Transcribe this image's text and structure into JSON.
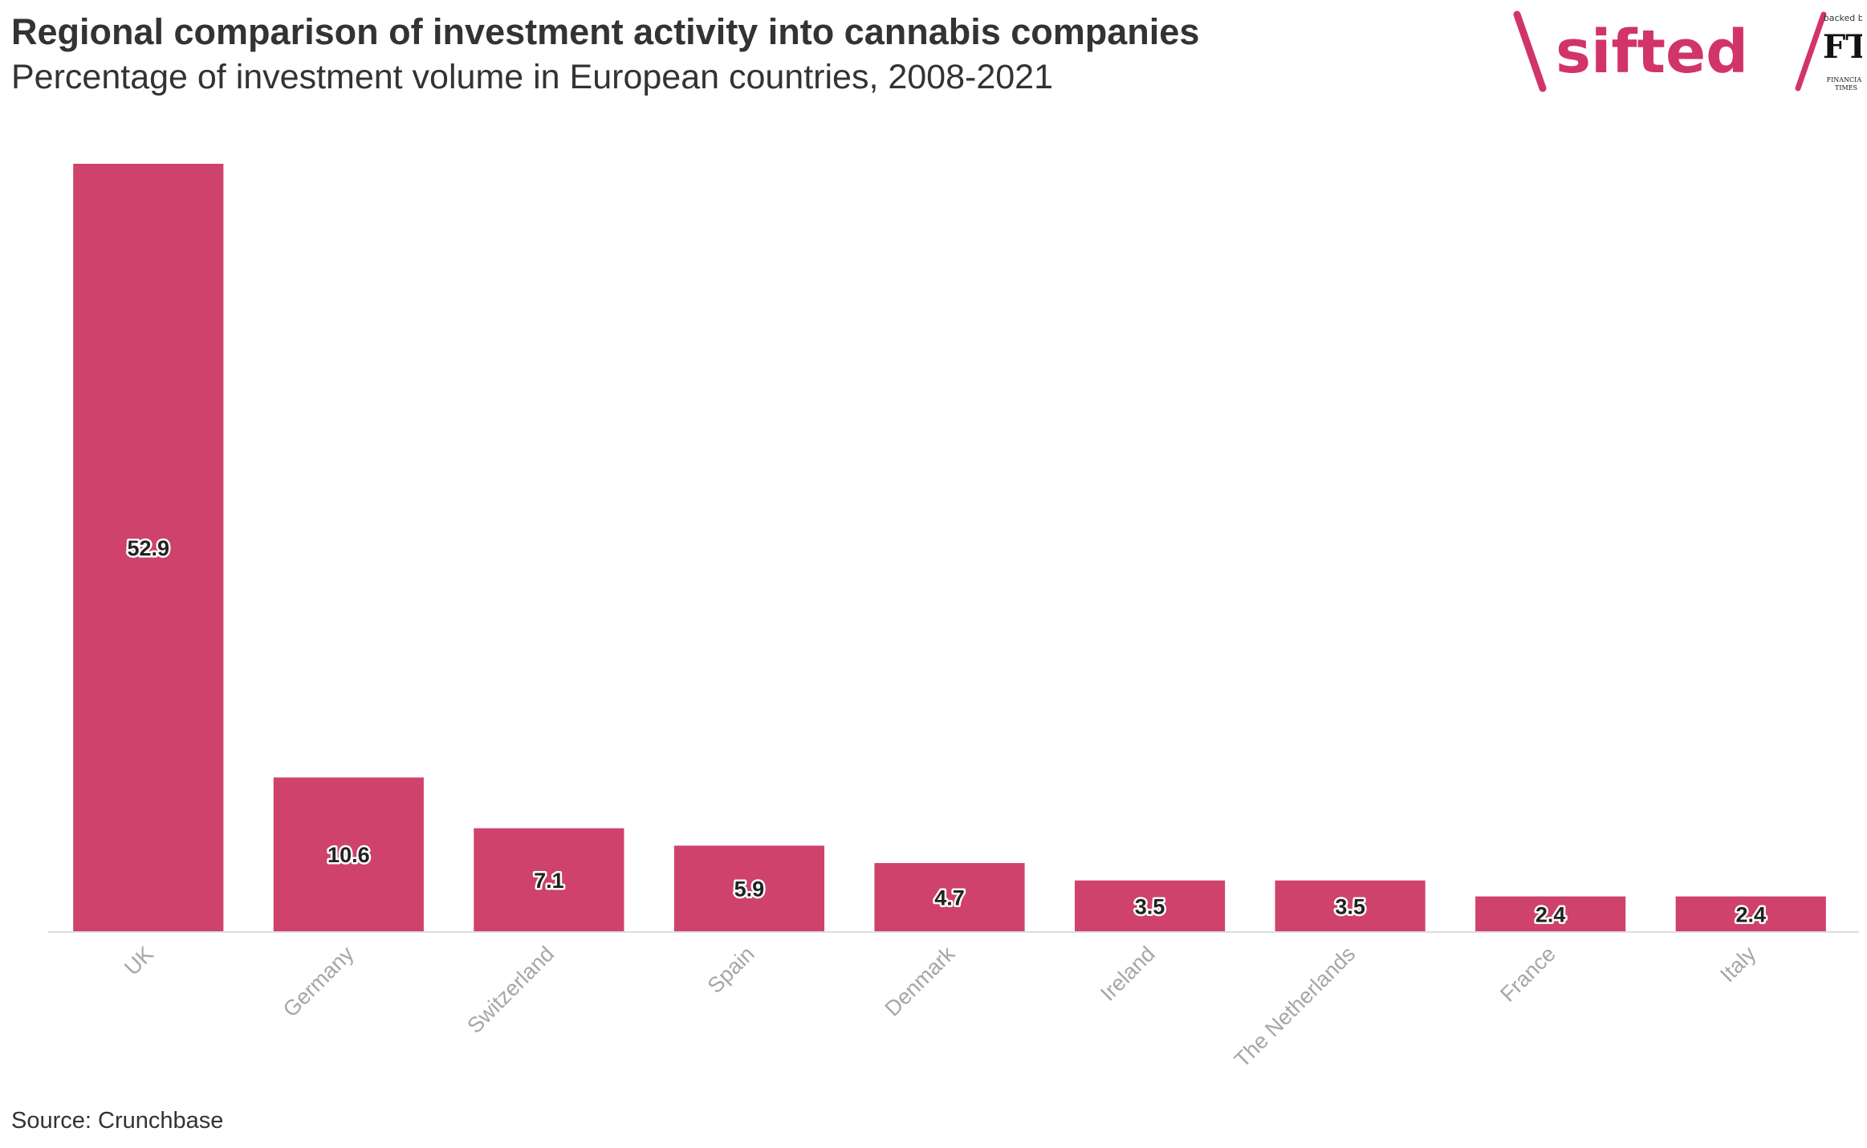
{
  "header": {
    "title": "Regional comparison of investment activity into cannabis companies",
    "subtitle": "Percentage of investment volume in European countries, 2008-2021"
  },
  "branding": {
    "logo_text": "sifted",
    "backed_by": "backed by",
    "ft_mark": "FT",
    "ft_name_line1": "FINANCIAL",
    "ft_name_line2": "TIMES"
  },
  "footer": {
    "source": "Source: Crunchbase"
  },
  "colors": {
    "bar": "#cf426c",
    "brand": "#d1346a",
    "axis_label": "#a6a6a6",
    "axis_line": "#dddddd"
  },
  "chart_data": {
    "type": "bar",
    "title": "Regional comparison of investment activity into cannabis companies",
    "subtitle": "Percentage of investment volume in European countries, 2008-2021",
    "xlabel": "",
    "ylabel": "",
    "categories": [
      "UK",
      "Germany",
      "Switzerland",
      "Spain",
      "Denmark",
      "Ireland",
      "The Netherlands",
      "France",
      "Italy"
    ],
    "values": [
      52.9,
      10.6,
      7.1,
      5.9,
      4.7,
      3.5,
      3.5,
      2.4,
      2.4
    ],
    "ylim": [
      0,
      52.9
    ],
    "grid": false,
    "legend": "none",
    "data_labels": true,
    "x_label_rotation": -45
  }
}
